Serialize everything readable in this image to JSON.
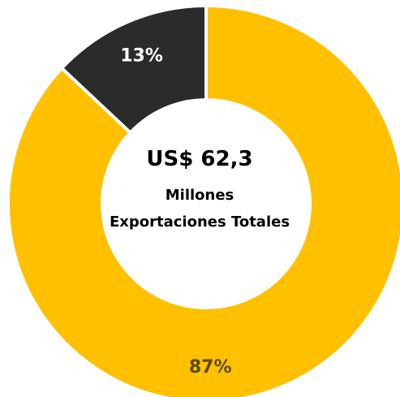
{
  "chart_data": {
    "type": "pie",
    "variant": "donut",
    "series": [
      {
        "values": [
          87,
          13
        ],
        "labels": [
          "87%",
          "13%"
        ],
        "colors": [
          "#FFC000",
          "#2B2B2B"
        ],
        "label_colors": [
          "#5A4A1A",
          "#FFFFFF"
        ]
      }
    ],
    "start_angle_deg": 0,
    "direction": "clockwise",
    "center_text": {
      "value": "US$ 62,3",
      "unit": "Millones",
      "caption": "Exportaciones Totales"
    },
    "title": "",
    "legend": "none",
    "separator_color": "#FFFFFF"
  }
}
